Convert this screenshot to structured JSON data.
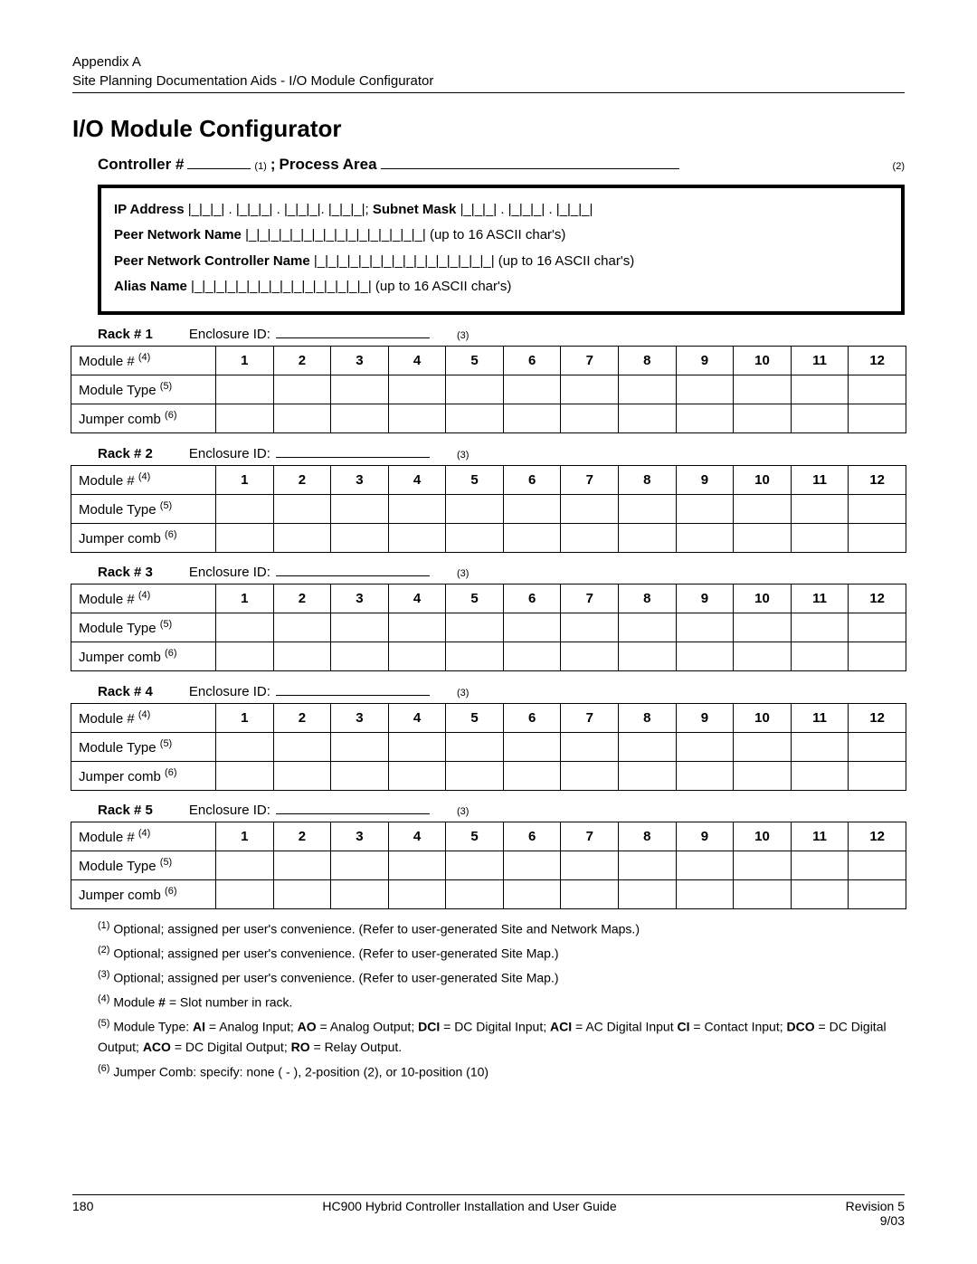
{
  "header": {
    "appendix": "Appendix A",
    "subtitle": "Site Planning Documentation Aids - I/O Module Configurator"
  },
  "title": "I/O Module Configurator",
  "controller_row": {
    "controller_label": "Controller #",
    "controller_underline_width": 70,
    "controller_sup": "(1)",
    "sep": "; ",
    "process_label": "Process Area",
    "process_underline_width": 330,
    "process_sup": "(2)"
  },
  "netbox": {
    "lines": [
      "<b>IP Address</b> <span class='blanks'>|_|_|_| . |_|_|_| . |_|_|_|. |_|_|_|;</span>  <b>Subnet Mask</b> <span class='blanks'>|_|_|_| . |_|_|_| . |_|_|_|</span>",
      "<b>Peer Network Name</b> <span class='blanks'>|_|_|_|_|_|_|_|_|_|_|_|_|_|_|_|_|</span> (up to 16 ASCII char's)",
      "<b>Peer Network Controller Name</b> <span class='blanks'>|_|_|_|_|_|_|_|_|_|_|_|_|_|_|_|_|</span> (up to 16 ASCII char's)",
      "<b>Alias Name</b> <span class='blanks'>|_|_|_|_|_|_|_|_|_|_|_|_|_|_|_|_|</span> (up to 16 ASCII char's)"
    ]
  },
  "rack_enclosure_label": "Enclosure ID:",
  "rack_enclosure_underline_width": 170,
  "rack_enclosure_sup": "(3)",
  "racks": [
    {
      "title": "Rack # 1"
    },
    {
      "title": "Rack # 2"
    },
    {
      "title": "Rack # 3"
    },
    {
      "title": "Rack # 4"
    },
    {
      "title": "Rack # 5"
    }
  ],
  "rack_rows": {
    "module_num_label": "Module #",
    "module_num_sup": "(4)",
    "module_cols": [
      "1",
      "2",
      "3",
      "4",
      "5",
      "6",
      "7",
      "8",
      "9",
      "10",
      "11",
      "12"
    ],
    "module_type_label": "Module Type",
    "module_type_sup": "(5)",
    "jumper_label": "Jumper comb",
    "jumper_sup": "(6)"
  },
  "footnotes": [
    {
      "num": "(1)",
      "text": "Optional; assigned per user's convenience.  (Refer to user-generated Site and Network Maps.)"
    },
    {
      "num": "(2)",
      "text": "Optional; assigned per user's convenience.  (Refer to user-generated Site Map.)"
    },
    {
      "num": "(3)",
      "text": "Optional; assigned per user's convenience.  (Refer to user-generated Site Map.)"
    },
    {
      "num": "(4)",
      "text": "Module <b>#</b> = Slot number in rack."
    },
    {
      "num": "(5)",
      "text": "Module Type: <b>AI</b> = Analog Input; <b>AO</b> = Analog Output; <b>DCI</b> = DC Digital Input; <b>ACI</b> = AC Digital Input <b>CI</b> = Contact Input; <b>DCO</b> = DC Digital Output; <b>ACO</b> = DC Digital Output; <b>RO</b> = Relay Output."
    },
    {
      "num": "(6)",
      "text": "Jumper Comb: specify: none ( - ), 2-position (2), or 10-position (10)"
    }
  ],
  "footer": {
    "page_num": "180",
    "center": "HC900 Hybrid Controller Installation and User Guide",
    "right1": "Revision 5",
    "right2": "9/03"
  }
}
